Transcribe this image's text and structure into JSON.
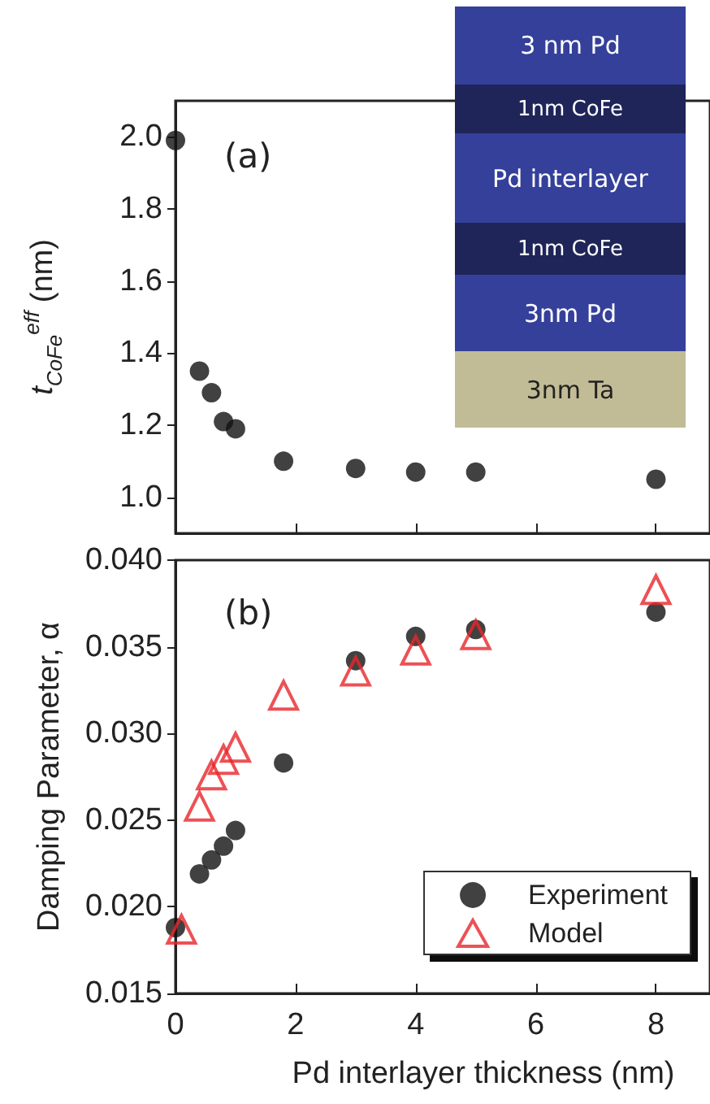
{
  "chart_data": [
    {
      "type": "scatter",
      "ylabel": "t$_{CoFe}$$^{eff}$ (nm)",
      "annotations": [
        "(a)",
        "3 nm  Pd",
        "1nm CoFe",
        "Pd interlayer",
        "1nm CoFe",
        "3nm Pd",
        "3nm Ta"
      ],
      "x": [
        0,
        0.4,
        0.6,
        0.8,
        1.0,
        1.8,
        3,
        4,
        5,
        8
      ],
      "series": [
        {
          "color": "#111111",
          "marker": "circle",
          "values": [
            1.99,
            1.35,
            1.29,
            1.21,
            1.19,
            1.1,
            1.08,
            1.07,
            1.07,
            1.05
          ]
        }
      ],
      "xlim": [
        0,
        8.9
      ],
      "xticks": [
        0,
        2,
        4,
        6,
        8
      ],
      "ylim": [
        0.9,
        2.1
      ],
      "yticks": [
        {
          "value": 1.0,
          "label": "1.0"
        },
        1.2,
        1.4,
        1.6,
        1.8,
        {
          "value": 2.0,
          "label": "2.0"
        }
      ],
      "tick_labels": "y",
      "grid": false,
      "legend": false
    },
    {
      "type": "scatter",
      "xlabel": "Pd interlayer thickness (nm)",
      "ylabel": "Damping Parameter, α",
      "annotations": [
        "(b)"
      ],
      "series": [
        {
          "name": "Experiment",
          "color": "#111111",
          "marker": "circle",
          "x": [
            0,
            0.4,
            0.6,
            0.8,
            1.0,
            1.8,
            3,
            4,
            5,
            8
          ],
          "values": [
            0.0188,
            0.0219,
            0.0227,
            0.0235,
            0.0244,
            0.0283,
            0.0342,
            0.0356,
            0.036,
            0.037
          ]
        },
        {
          "name": "Model",
          "color": "#e8262b",
          "marker": "triangle",
          "x": [
            0.1,
            0.4,
            0.6,
            0.8,
            1.0,
            1.8,
            3,
            4,
            5,
            8
          ],
          "values": [
            0.0187,
            0.0258,
            0.0276,
            0.0285,
            0.0292,
            0.0322,
            0.0336,
            0.0348,
            0.0357,
            0.0383
          ]
        }
      ],
      "xlim": [
        0,
        8.9
      ],
      "xticks": [
        0,
        2,
        4,
        6,
        8
      ],
      "ylim": [
        0.015,
        0.04
      ],
      "yticks": [
        {
          "value": 0.015,
          "label": "0.015"
        },
        {
          "value": 0.02,
          "label": "0.020"
        },
        {
          "value": 0.025,
          "label": "0.025"
        },
        {
          "value": 0.03,
          "label": "0.030"
        },
        {
          "value": 0.035,
          "label": "0.035"
        },
        {
          "value": 0.04,
          "label": "0.040"
        }
      ],
      "grid": false,
      "legend": "bottom right"
    }
  ]
}
